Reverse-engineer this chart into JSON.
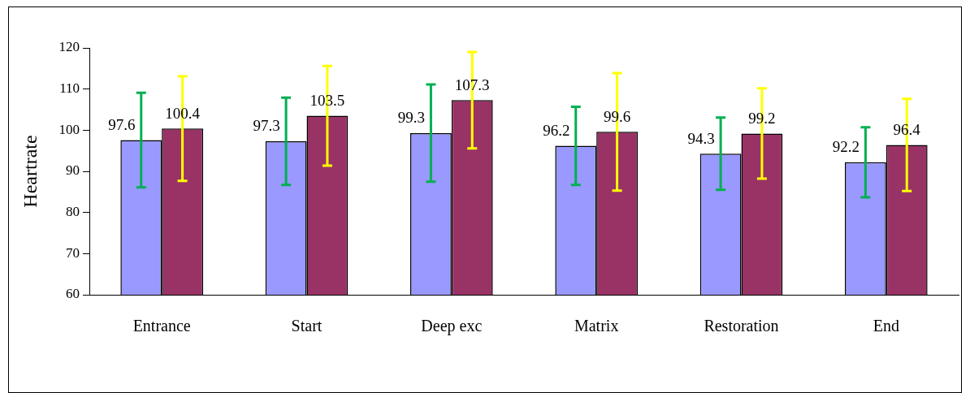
{
  "chart_data": {
    "type": "bar",
    "ylabel": "Heartrate",
    "categories": [
      "Entrance",
      "Start",
      "Deep exc",
      "Matrix",
      "Restoration",
      "End"
    ],
    "series": [
      {
        "color": "#9999ff",
        "values": [
          97.6,
          97.3,
          99.3,
          96.2,
          94.3,
          92.2
        ],
        "errors": [
          11.5,
          10.6,
          11.8,
          9.5,
          8.8,
          8.5
        ]
      },
      {
        "color": "#993366",
        "values": [
          100.4,
          103.5,
          107.3,
          99.6,
          99.2,
          96.4
        ],
        "errors": [
          12.7,
          12.1,
          11.7,
          14.3,
          11.0,
          11.2
        ]
      }
    ],
    "ylim": [
      60,
      120
    ],
    "yticks": [
      60,
      70,
      80,
      90,
      100,
      110,
      120
    ],
    "data_labels": true,
    "grid": false,
    "legend": false
  }
}
